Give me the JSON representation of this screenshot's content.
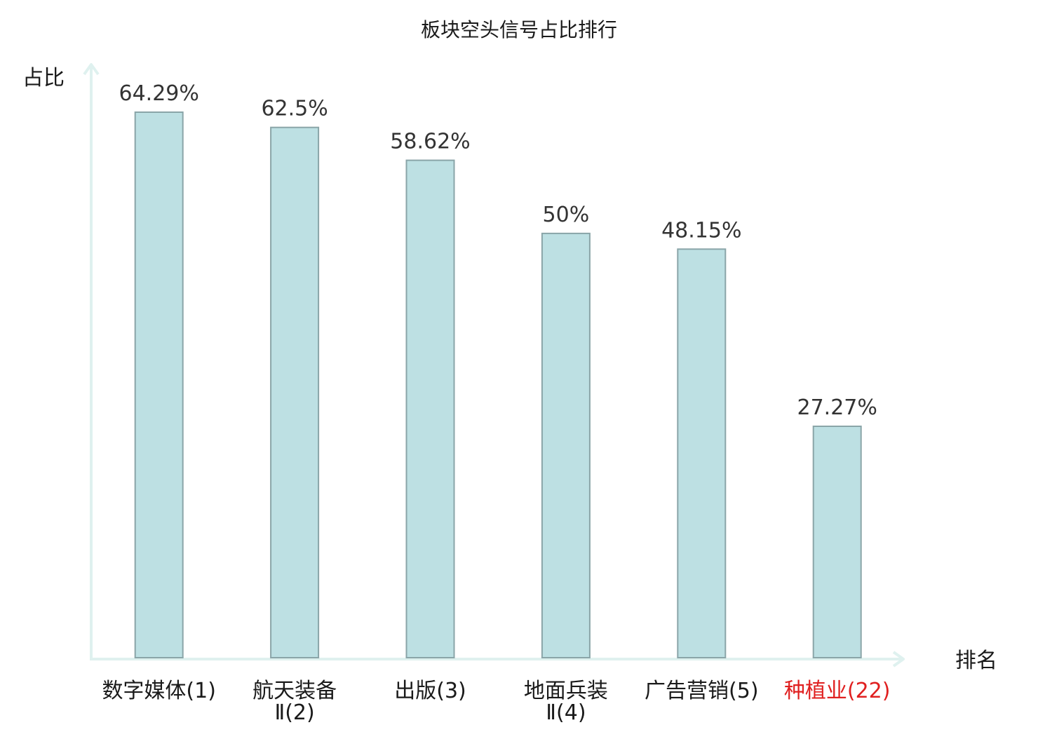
{
  "chart_data": {
    "type": "bar",
    "title": "板块空头信号占比排行",
    "ylabel": "占比",
    "xlabel": "排名",
    "ylim": [
      0,
      70
    ],
    "grid": false,
    "legend": "none",
    "categories": [
      {
        "name": "数字媒体",
        "rank": "(1)",
        "highlight": false
      },
      {
        "name": "航天装备Ⅱ",
        "rank": "(2)",
        "highlight": false
      },
      {
        "name": "出版",
        "rank": "(3)",
        "highlight": false
      },
      {
        "name": "地面兵装Ⅱ",
        "rank": "(4)",
        "highlight": false
      },
      {
        "name": "广告营销",
        "rank": "(5)",
        "highlight": false
      },
      {
        "name": "种植业",
        "rank": "(22)",
        "highlight": true
      }
    ],
    "values": [
      64.29,
      62.5,
      58.62,
      50,
      48.15,
      27.27
    ],
    "value_labels": [
      "64.29%",
      "62.5%",
      "58.62%",
      "50%",
      "48.15%",
      "27.27%"
    ]
  },
  "colors": {
    "bar_fill": "#bde0e3",
    "bar_stroke": "#8aa5a8",
    "axis": "#dff1ef",
    "text": "#1a1a1a",
    "value_text": "#333333",
    "highlight": "#e02020"
  }
}
